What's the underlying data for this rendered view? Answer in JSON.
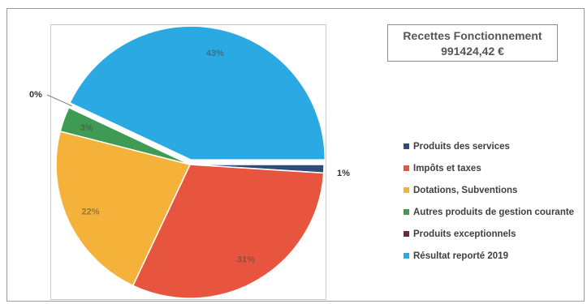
{
  "chart_data": {
    "type": "pie",
    "title": "Recettes Fonctionnement",
    "total": "991424,42 €",
    "legend_position": "right",
    "series": [
      {
        "name": "Produits des services",
        "value": 1,
        "label": "1%",
        "color": "#2e4d78"
      },
      {
        "name": "Impôts et taxes",
        "value": 31,
        "label": "31%",
        "color": "#e8553f"
      },
      {
        "name": "Dotations, Subventions",
        "value": 22,
        "label": "22%",
        "color": "#f5b23b"
      },
      {
        "name": "Autres produits de gestion courante",
        "value": 3,
        "label": "3%",
        "color": "#3f9a54"
      },
      {
        "name": "Produits exceptionnels",
        "value": 0,
        "label": "0%",
        "color": "#6e2a3c"
      },
      {
        "name": "Résultat reporté 2019",
        "value": 43,
        "label": "43%",
        "color": "#2aa9e3"
      }
    ]
  }
}
